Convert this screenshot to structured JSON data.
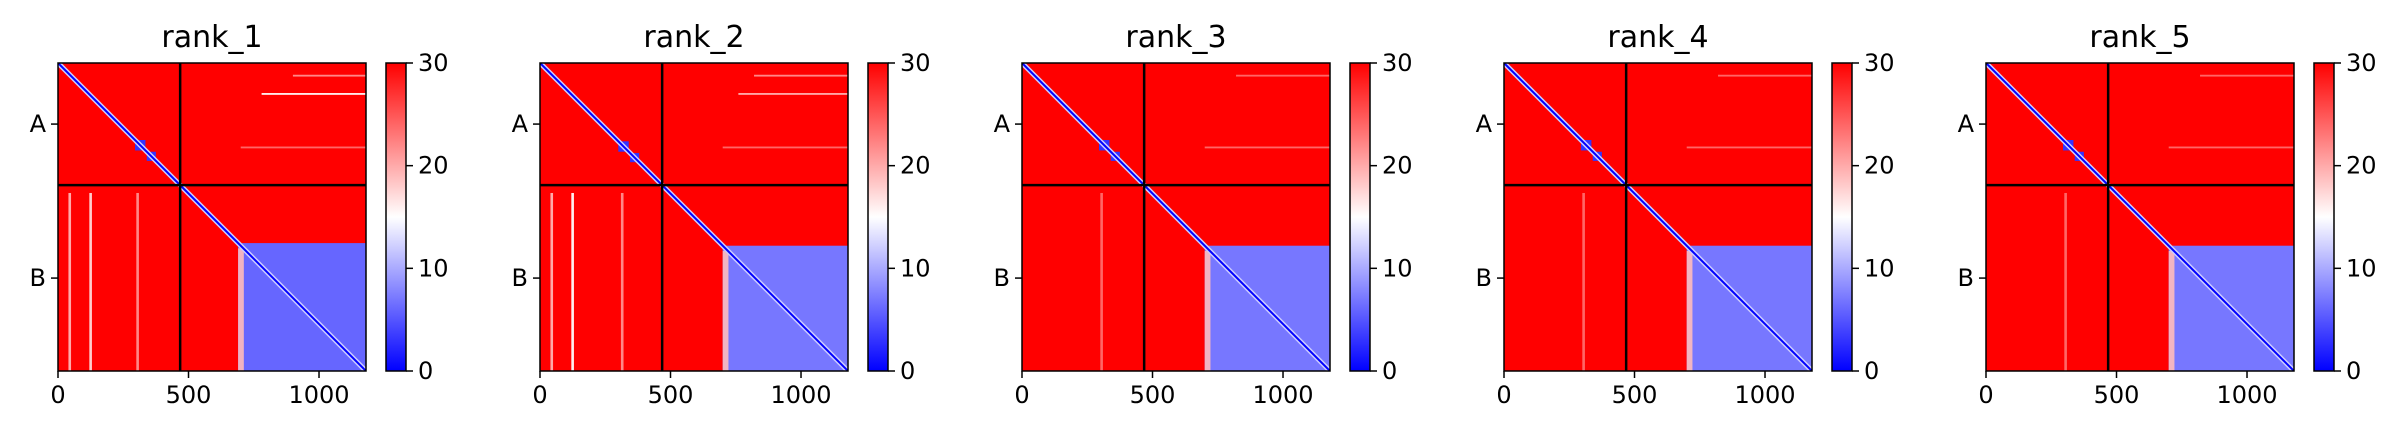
{
  "figure": {
    "colormap": {
      "name": "bwr",
      "low": "#0000ff",
      "mid": "#ffffff",
      "high": "#ff0000"
    }
  },
  "chart_data": [
    {
      "type": "heatmap",
      "title": "rank_1",
      "xlabel": "",
      "ylabel": "",
      "xlim": [
        0,
        1180
      ],
      "ylim": [
        1180,
        0
      ],
      "x_ticks": [
        0,
        500,
        1000
      ],
      "x_tick_labels": [
        "0",
        "500",
        "1000"
      ],
      "chain_boundary": 468,
      "y_tick_labels": [
        "A",
        "B"
      ],
      "y_tick_positions": [
        234,
        824
      ],
      "colorbar": {
        "range": [
          0,
          30
        ],
        "ticks": [
          0,
          10,
          20,
          30
        ],
        "tick_labels": [
          "0",
          "10",
          "20",
          "30"
        ]
      },
      "diagonal_domains": [
        {
          "start": 295,
          "end": 335,
          "value": 3
        },
        {
          "start": 340,
          "end": 375,
          "value": 3
        }
      ],
      "low_value_block": {
        "start": 690,
        "end": 1180,
        "value": 6
      },
      "horizontal_streaks_A": [
        {
          "pos": 45,
          "value": 22,
          "x_start": 900
        },
        {
          "pos": 115,
          "value": 16,
          "x_start": 780
        },
        {
          "pos": 320,
          "value": 24,
          "x_start": 700
        }
      ],
      "vertical_streaks_B": [
        {
          "pos": 40,
          "value": 20
        },
        {
          "pos": 120,
          "value": 18
        },
        {
          "pos": 300,
          "value": 22
        }
      ]
    },
    {
      "type": "heatmap",
      "title": "rank_2",
      "xlabel": "",
      "ylabel": "",
      "xlim": [
        0,
        1180
      ],
      "ylim": [
        1180,
        0
      ],
      "x_ticks": [
        0,
        500,
        1000
      ],
      "x_tick_labels": [
        "0",
        "500",
        "1000"
      ],
      "chain_boundary": 468,
      "y_tick_labels": [
        "A",
        "B"
      ],
      "y_tick_positions": [
        234,
        824
      ],
      "colorbar": {
        "range": [
          0,
          30
        ],
        "ticks": [
          0,
          10,
          20,
          30
        ],
        "tick_labels": [
          "0",
          "10",
          "20",
          "30"
        ]
      },
      "diagonal_domains": [
        {
          "start": 300,
          "end": 340,
          "value": 3
        },
        {
          "start": 345,
          "end": 380,
          "value": 3
        }
      ],
      "low_value_block": {
        "start": 700,
        "end": 1180,
        "value": 7
      },
      "horizontal_streaks_A": [
        {
          "pos": 45,
          "value": 22,
          "x_start": 820
        },
        {
          "pos": 115,
          "value": 20,
          "x_start": 760
        },
        {
          "pos": 320,
          "value": 24,
          "x_start": 700
        }
      ],
      "vertical_streaks_B": [
        {
          "pos": 40,
          "value": 20
        },
        {
          "pos": 120,
          "value": 16
        },
        {
          "pos": 310,
          "value": 22
        }
      ]
    },
    {
      "type": "heatmap",
      "title": "rank_3",
      "xlabel": "",
      "ylabel": "",
      "xlim": [
        0,
        1180
      ],
      "ylim": [
        1180,
        0
      ],
      "x_ticks": [
        0,
        500,
        1000
      ],
      "x_tick_labels": [
        "0",
        "500",
        "1000"
      ],
      "chain_boundary": 468,
      "y_tick_labels": [
        "A",
        "B"
      ],
      "y_tick_positions": [
        234,
        824
      ],
      "colorbar": {
        "range": [
          0,
          30
        ],
        "ticks": [
          0,
          10,
          20,
          30
        ],
        "tick_labels": [
          "0",
          "10",
          "20",
          "30"
        ]
      },
      "diagonal_domains": [
        {
          "start": 295,
          "end": 335,
          "value": 3
        },
        {
          "start": 340,
          "end": 375,
          "value": 3
        }
      ],
      "low_value_block": {
        "start": 700,
        "end": 1180,
        "value": 7
      },
      "horizontal_streaks_A": [
        {
          "pos": 45,
          "value": 24,
          "x_start": 820
        },
        {
          "pos": 320,
          "value": 24,
          "x_start": 700
        }
      ],
      "vertical_streaks_B": [
        {
          "pos": 300,
          "value": 24
        }
      ]
    },
    {
      "type": "heatmap",
      "title": "rank_4",
      "xlabel": "",
      "ylabel": "",
      "xlim": [
        0,
        1180
      ],
      "ylim": [
        1180,
        0
      ],
      "x_ticks": [
        0,
        500,
        1000
      ],
      "x_tick_labels": [
        "0",
        "500",
        "1000"
      ],
      "chain_boundary": 468,
      "y_tick_labels": [
        "A",
        "B"
      ],
      "y_tick_positions": [
        234,
        824
      ],
      "colorbar": {
        "range": [
          0,
          30
        ],
        "ticks": [
          0,
          10,
          20,
          30
        ],
        "tick_labels": [
          "0",
          "10",
          "20",
          "30"
        ]
      },
      "diagonal_domains": [
        {
          "start": 295,
          "end": 335,
          "value": 3
        },
        {
          "start": 340,
          "end": 375,
          "value": 3
        }
      ],
      "low_value_block": {
        "start": 700,
        "end": 1180,
        "value": 7
      },
      "horizontal_streaks_A": [
        {
          "pos": 45,
          "value": 24,
          "x_start": 820
        },
        {
          "pos": 320,
          "value": 24,
          "x_start": 700
        }
      ],
      "vertical_streaks_B": [
        {
          "pos": 300,
          "value": 24
        }
      ]
    },
    {
      "type": "heatmap",
      "title": "rank_5",
      "xlabel": "",
      "ylabel": "",
      "xlim": [
        0,
        1180
      ],
      "ylim": [
        1180,
        0
      ],
      "x_ticks": [
        0,
        500,
        1000
      ],
      "x_tick_labels": [
        "0",
        "500",
        "1000"
      ],
      "chain_boundary": 468,
      "y_tick_labels": [
        "A",
        "B"
      ],
      "y_tick_positions": [
        234,
        824
      ],
      "colorbar": {
        "range": [
          0,
          30
        ],
        "ticks": [
          0,
          10,
          20,
          30
        ],
        "tick_labels": [
          "0",
          "10",
          "20",
          "30"
        ]
      },
      "diagonal_domains": [
        {
          "start": 295,
          "end": 335,
          "value": 3
        },
        {
          "start": 340,
          "end": 375,
          "value": 3
        }
      ],
      "low_value_block": {
        "start": 700,
        "end": 1180,
        "value": 7
      },
      "horizontal_streaks_A": [
        {
          "pos": 45,
          "value": 24,
          "x_start": 820
        },
        {
          "pos": 320,
          "value": 24,
          "x_start": 700
        }
      ],
      "vertical_streaks_B": [
        {
          "pos": 300,
          "value": 24
        }
      ]
    }
  ]
}
